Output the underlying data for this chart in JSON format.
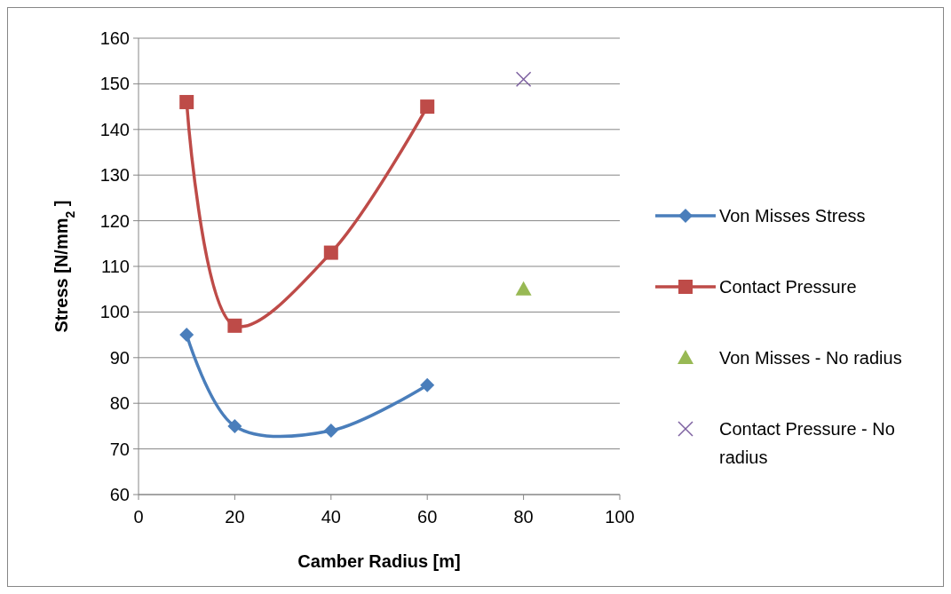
{
  "chart_data": {
    "type": "line",
    "xlabel": "Camber Radius [m]",
    "ylabel": "Stress [N/mm$_{2}$ ]",
    "xlim": [
      0,
      100
    ],
    "xticks": [
      0,
      20,
      40,
      60,
      80,
      100
    ],
    "ylim": [
      60,
      160
    ],
    "yticks": [
      60,
      70,
      80,
      90,
      100,
      110,
      120,
      130,
      140,
      150,
      160
    ],
    "grid": "y",
    "legend": "right",
    "series": [
      {
        "name": "Von Misses Stress",
        "color": "#4a7ebb",
        "marker": "diamond",
        "x": [
          10,
          20,
          40,
          60
        ],
        "values": [
          95,
          75,
          74,
          84
        ]
      },
      {
        "name": "Contact Pressure",
        "color": "#be4b48",
        "marker": "square",
        "x": [
          10,
          20,
          40,
          60
        ],
        "values": [
          146,
          97,
          113,
          145
        ]
      },
      {
        "name": "Von Misses - No radius",
        "type": "scatter",
        "color": "#98b954",
        "marker": "triangle",
        "x": [
          80
        ],
        "values": [
          105
        ]
      },
      {
        "name": "Contact Pressure - No radius",
        "type": "scatter",
        "color": "#7d60a0",
        "marker": "cross",
        "x": [
          80
        ],
        "values": [
          151
        ]
      }
    ]
  }
}
